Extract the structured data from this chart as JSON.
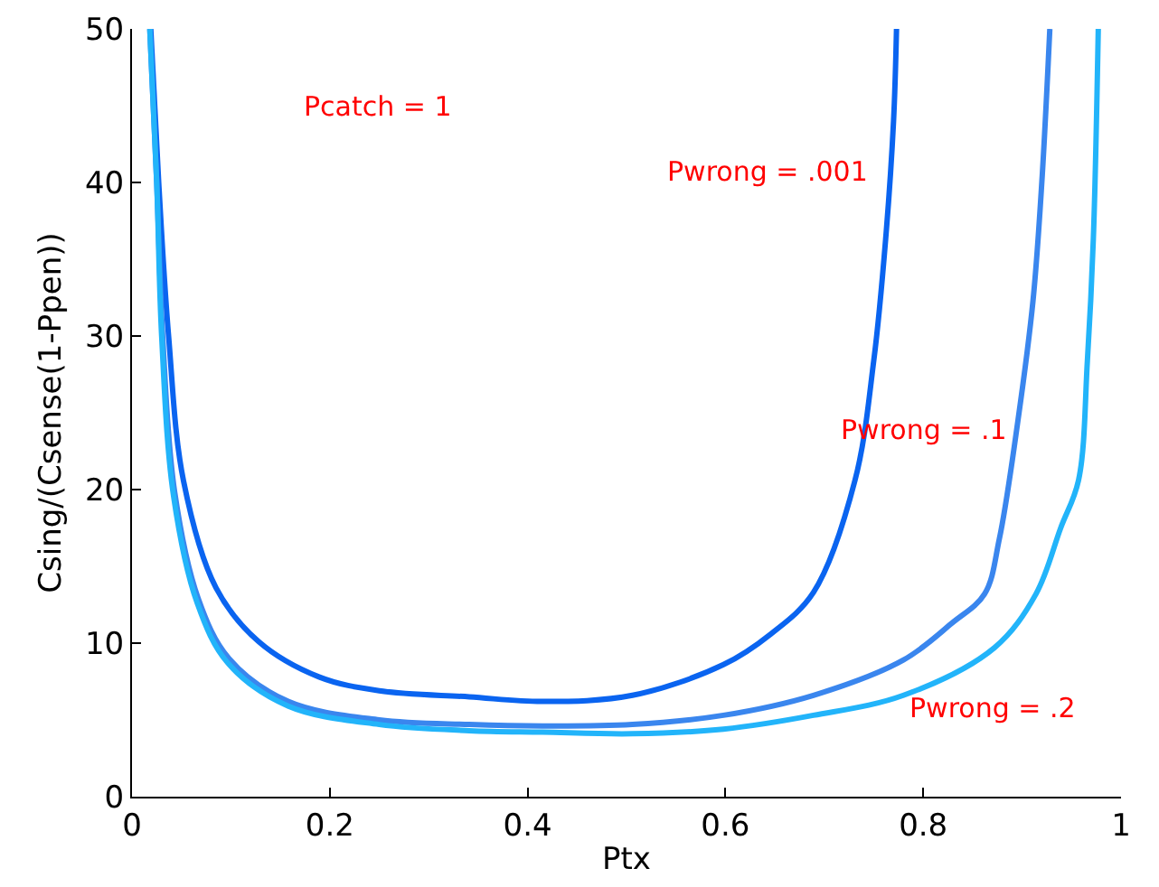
{
  "chart_data": {
    "type": "line",
    "xlabel": "Ptx",
    "ylabel": "Csing/(Csense(1-Ppen))",
    "xlim": [
      0,
      1
    ],
    "ylim": [
      0,
      50
    ],
    "xticks": [
      0,
      0.2,
      0.4,
      0.6,
      0.8,
      1
    ],
    "yticks": [
      0,
      10,
      20,
      30,
      40,
      50
    ],
    "grid": false,
    "marker": "none",
    "line_style": "solid",
    "series": [
      {
        "color": "#0a64f0",
        "x": [
          0.019,
          0.027,
          0.037,
          0.052,
          0.085,
          0.128,
          0.189,
          0.25,
          0.341,
          0.415,
          0.506,
          0.598,
          0.646,
          0.689,
          0.731,
          0.75,
          0.762,
          0.77,
          0.773
        ],
        "values": [
          50,
          40,
          30,
          20.6,
          13.6,
          10.1,
          7.8,
          6.9,
          6.5,
          6.2,
          6.6,
          8.6,
          10.6,
          13.3,
          20.6,
          28.4,
          36.3,
          44,
          50
        ]
      },
      {
        "color": "#3a86ee",
        "x": [
          0.018,
          0.025,
          0.031,
          0.043,
          0.067,
          0.098,
          0.158,
          0.25,
          0.341,
          0.415,
          0.506,
          0.598,
          0.689,
          0.78,
          0.829,
          0.862,
          0.877,
          0.896,
          0.911,
          0.92,
          0.928
        ],
        "values": [
          50,
          40,
          30,
          19.9,
          12.9,
          9,
          6.2,
          5,
          4.7,
          4.6,
          4.7,
          5.3,
          6.6,
          8.9,
          11.3,
          13.2,
          16.8,
          24.6,
          32.3,
          40.1,
          50
        ]
      },
      {
        "color": "#22b4fa",
        "x": [
          0.018,
          0.025,
          0.03,
          0.042,
          0.066,
          0.097,
          0.158,
          0.25,
          0.341,
          0.415,
          0.506,
          0.598,
          0.689,
          0.78,
          0.872,
          0.914,
          0.939,
          0.957,
          0.966,
          0.972,
          0.977
        ],
        "values": [
          50,
          40,
          30,
          19.6,
          12.6,
          8.7,
          5.9,
          4.7,
          4.3,
          4.2,
          4.1,
          4.4,
          5.3,
          6.6,
          9.7,
          13.2,
          17.5,
          20.6,
          28.4,
          36.3,
          50
        ]
      }
    ],
    "annotations": [
      "Pcatch = 1",
      "Pwrong = .001",
      "Pwrong = .1",
      "Pwrong = .2"
    ]
  }
}
